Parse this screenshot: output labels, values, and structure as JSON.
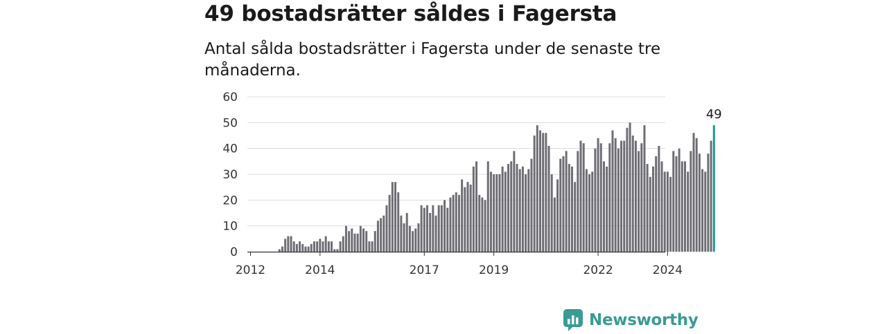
{
  "title": "49 bostadsrätter såldes i Fagersta",
  "subtitle": "Antal sålda bostadsrätter i Fagersta under de senaste tre månaderna.",
  "brand": {
    "name": "Newsworthy",
    "color": "#3a9a94"
  },
  "chart_data": {
    "type": "bar",
    "title": "49 bostadsrätter såldes i Fagersta",
    "subtitle": "Antal sålda bostadsrätter i Fagersta under de senaste tre månaderna.",
    "xlabel": "",
    "ylabel": "",
    "ylim": [
      0,
      60
    ],
    "yticks": [
      0,
      10,
      20,
      30,
      40,
      50,
      60
    ],
    "xticks": [
      "2012",
      "2014",
      "2017",
      "2019",
      "2022",
      "2024"
    ],
    "grid": true,
    "bar_color": "#6e6d74",
    "highlight_color": "#1a9b91",
    "highlight_label": "49",
    "period": "monthly, Jan 2012 – Jul 2025 (approx.)",
    "values": [
      0,
      0,
      0,
      0,
      0,
      0,
      0,
      0,
      0,
      0,
      1,
      2,
      5,
      6,
      6,
      4,
      3,
      4,
      3,
      2,
      2,
      3,
      4,
      4,
      5,
      4,
      6,
      4,
      4,
      1,
      1,
      4,
      6,
      10,
      8,
      9,
      7,
      7,
      10,
      9,
      8,
      4,
      4,
      8,
      12,
      13,
      14,
      18,
      22,
      27,
      27,
      23,
      14,
      11,
      15,
      10,
      8,
      9,
      11,
      18,
      17,
      18,
      15,
      18,
      14,
      18,
      18,
      20,
      17,
      21,
      22,
      23,
      22,
      28,
      25,
      27,
      26,
      33,
      35,
      22,
      21,
      20,
      35,
      31,
      30,
      30,
      30,
      33,
      31,
      34,
      35,
      39,
      34,
      32,
      33,
      30,
      32,
      36,
      45,
      49,
      47,
      46,
      46,
      41,
      30,
      21,
      28,
      36,
      37,
      39,
      34,
      33,
      27,
      39,
      43,
      42,
      32,
      30,
      31,
      40,
      44,
      42,
      35,
      33,
      42,
      47,
      44,
      40,
      43,
      43,
      48,
      50,
      45,
      43,
      39,
      42,
      49,
      34,
      29,
      33,
      37,
      41,
      35,
      31,
      31,
      29,
      39,
      37,
      40,
      35,
      35,
      31,
      39,
      46,
      44,
      38,
      32,
      31,
      38,
      43,
      49
    ]
  }
}
